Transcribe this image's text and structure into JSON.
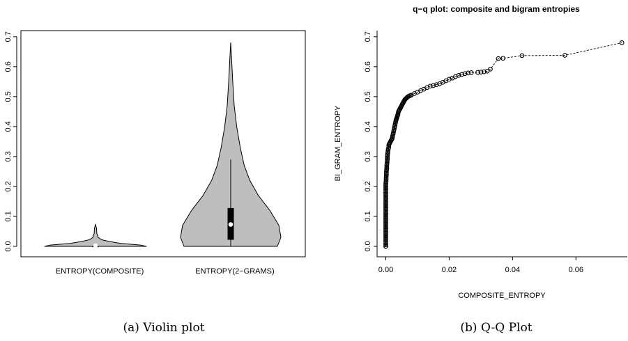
{
  "chart_data": [
    {
      "type": "violin",
      "title": "",
      "caption": "(a) Violin plot",
      "categories": [
        "ENTROPY(COMPOSITE)",
        "ENTROPY(2−GRAMS)"
      ],
      "ylim": [
        0,
        0.7
      ],
      "yticks": [
        "0.0",
        "0.1",
        "0.2",
        "0.3",
        "0.4",
        "0.5",
        "0.6",
        "0.7"
      ],
      "violins": [
        {
          "name": "ENTROPY(COMPOSITE)",
          "min": 0.0,
          "q1": 0.0,
          "median": 0.0,
          "q3": 0.002,
          "max": 0.074,
          "whisker_top": 0.005,
          "density": [
            [
              0.0,
              1.0
            ],
            [
              0.004,
              0.9
            ],
            [
              0.01,
              0.5
            ],
            [
              0.016,
              0.28
            ],
            [
              0.022,
              0.12
            ],
            [
              0.03,
              0.05
            ],
            [
              0.045,
              0.025
            ],
            [
              0.06,
              0.02
            ],
            [
              0.074,
              0.0
            ]
          ]
        },
        {
          "name": "ENTROPY(2−GRAMS)",
          "min": 0.0,
          "q1": 0.022,
          "median": 0.073,
          "q3": 0.128,
          "max": 0.68,
          "whisker_top": 0.29,
          "density": [
            [
              0.0,
              0.93
            ],
            [
              0.03,
              1.0
            ],
            [
              0.07,
              0.96
            ],
            [
              0.12,
              0.78
            ],
            [
              0.17,
              0.55
            ],
            [
              0.22,
              0.38
            ],
            [
              0.27,
              0.27
            ],
            [
              0.33,
              0.19
            ],
            [
              0.4,
              0.12
            ],
            [
              0.47,
              0.07
            ],
            [
              0.55,
              0.04
            ],
            [
              0.62,
              0.02
            ],
            [
              0.68,
              0.0
            ]
          ]
        }
      ]
    },
    {
      "type": "scatter",
      "title": "q−q plot: composite and bigram entropies",
      "caption": "(b) Q-Q Plot",
      "xlabel": "COMPOSITE_ENTROPY",
      "ylabel": "BI_GRAM_ENTROPY",
      "xlim": [
        -0.0025,
        0.075
      ],
      "ylim": [
        -0.015,
        0.72
      ],
      "xticks": [
        "0.00",
        "0.02",
        "0.04",
        "0.06"
      ],
      "yticks": [
        "0.0",
        "0.1",
        "0.2",
        "0.3",
        "0.4",
        "0.5",
        "0.6",
        "0.7"
      ],
      "line_style": "dashed",
      "marker": "open-circle",
      "points": [
        [
          0.0,
          0.0
        ],
        [
          0.0,
          0.0
        ],
        [
          0.0,
          0.005
        ],
        [
          0.0,
          0.01
        ],
        [
          0.0,
          0.02
        ],
        [
          0.0,
          0.03
        ],
        [
          0.0,
          0.04
        ],
        [
          0.0,
          0.05
        ],
        [
          0.0,
          0.06
        ],
        [
          0.0,
          0.07
        ],
        [
          0.0,
          0.08
        ],
        [
          0.0,
          0.09
        ],
        [
          0.0,
          0.1
        ],
        [
          0.0,
          0.11
        ],
        [
          0.0,
          0.12
        ],
        [
          0.0,
          0.13
        ],
        [
          0.0,
          0.14
        ],
        [
          0.0,
          0.15
        ],
        [
          0.0,
          0.16
        ],
        [
          0.0,
          0.17
        ],
        [
          0.0,
          0.18
        ],
        [
          0.0,
          0.19
        ],
        [
          0.0,
          0.2
        ],
        [
          0.0,
          0.21
        ],
        [
          0.0001,
          0.22
        ],
        [
          0.0001,
          0.23
        ],
        [
          0.0002,
          0.24
        ],
        [
          0.0002,
          0.25
        ],
        [
          0.0003,
          0.26
        ],
        [
          0.0003,
          0.27
        ],
        [
          0.0004,
          0.28
        ],
        [
          0.0005,
          0.29
        ],
        [
          0.0005,
          0.3
        ],
        [
          0.0006,
          0.31
        ],
        [
          0.0007,
          0.32
        ],
        [
          0.0009,
          0.33
        ],
        [
          0.001,
          0.34
        ],
        [
          0.0015,
          0.35
        ],
        [
          0.002,
          0.36
        ],
        [
          0.0022,
          0.37
        ],
        [
          0.0024,
          0.38
        ],
        [
          0.0026,
          0.39
        ],
        [
          0.0028,
          0.4
        ],
        [
          0.003,
          0.41
        ],
        [
          0.0032,
          0.42
        ],
        [
          0.0035,
          0.43
        ],
        [
          0.0038,
          0.44
        ],
        [
          0.004,
          0.45
        ],
        [
          0.0045,
          0.46
        ],
        [
          0.005,
          0.47
        ],
        [
          0.0055,
          0.48
        ],
        [
          0.006,
          0.49
        ],
        [
          0.007,
          0.5
        ],
        [
          0.008,
          0.505
        ],
        [
          0.009,
          0.51
        ],
        [
          0.01,
          0.515
        ],
        [
          0.011,
          0.52
        ],
        [
          0.012,
          0.525
        ],
        [
          0.013,
          0.53
        ],
        [
          0.014,
          0.535
        ],
        [
          0.015,
          0.537
        ],
        [
          0.016,
          0.54
        ],
        [
          0.017,
          0.543
        ],
        [
          0.018,
          0.548
        ],
        [
          0.019,
          0.553
        ],
        [
          0.02,
          0.558
        ],
        [
          0.021,
          0.562
        ],
        [
          0.022,
          0.567
        ],
        [
          0.023,
          0.571
        ],
        [
          0.024,
          0.574
        ],
        [
          0.025,
          0.577
        ],
        [
          0.026,
          0.579
        ],
        [
          0.027,
          0.58
        ],
        [
          0.029,
          0.581
        ],
        [
          0.03,
          0.582
        ],
        [
          0.031,
          0.583
        ],
        [
          0.032,
          0.585
        ],
        [
          0.033,
          0.592
        ],
        [
          0.0355,
          0.627
        ],
        [
          0.037,
          0.628
        ],
        [
          0.043,
          0.637
        ],
        [
          0.0565,
          0.638
        ],
        [
          0.0745,
          0.68
        ]
      ]
    }
  ]
}
